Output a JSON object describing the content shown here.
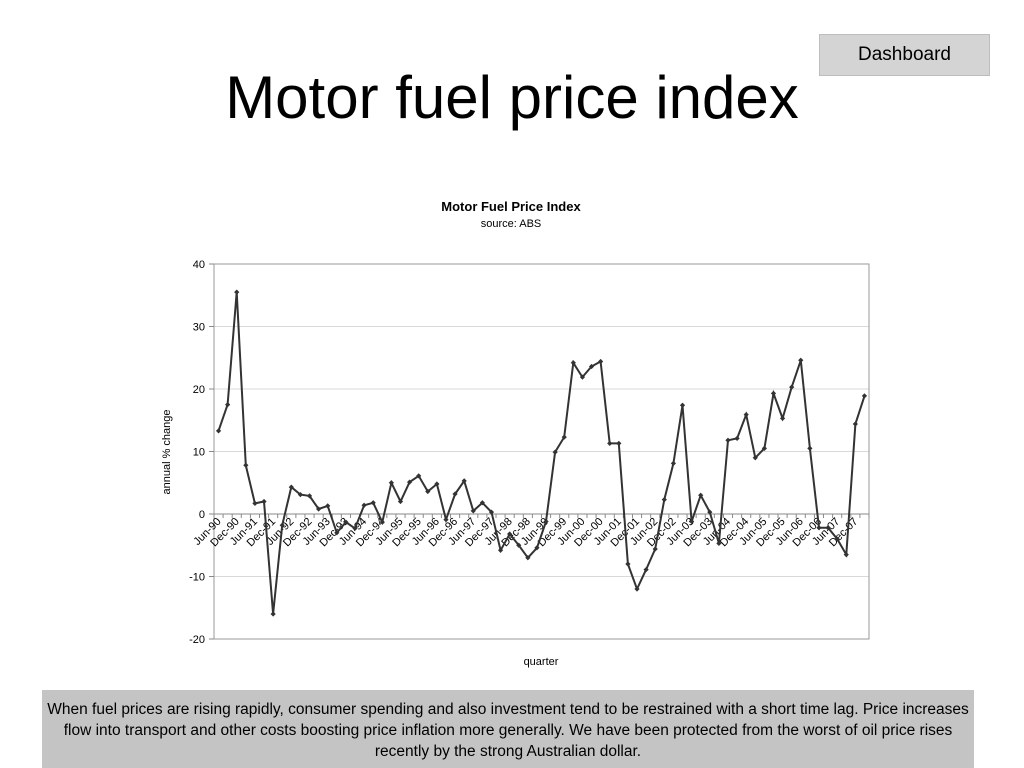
{
  "slide": {
    "title": "Motor fuel price index",
    "dashboard_label": "Dashboard",
    "caption": "When fuel prices are rising rapidly, consumer spending and also investment tend to be restrained with a short time lag.  Price increases flow into transport and other costs boosting price inflation more generally.  We have been protected from the worst of oil price rises recently by the strong Australian dollar."
  },
  "chart_data": {
    "type": "line",
    "title": "Motor Fuel Price Index",
    "subtitle": "source: ABS",
    "xlabel": "quarter",
    "ylabel": "annual % change",
    "ylim": [
      -20,
      40
    ],
    "yticks": [
      -20,
      -10,
      0,
      10,
      20,
      30,
      40
    ],
    "grid": true,
    "legend": "none",
    "line_color": "#333333",
    "x_tick_labels": [
      "Jun-90",
      "Dec-90",
      "Jun-91",
      "Dec-91",
      "Jun-92",
      "Dec-92",
      "Jun-93",
      "Dec-93",
      "Jun-94",
      "Dec-94",
      "Jun-95",
      "Dec-95",
      "Jun-96",
      "Dec-96",
      "Jun-97",
      "Dec-97",
      "Jun-98",
      "Dec-98",
      "Jun-99",
      "Dec-99",
      "Jun-00",
      "Dec-00",
      "Jun-01",
      "Dec-01",
      "Jun-02",
      "Dec-02",
      "Jun-03",
      "Dec-03",
      "Jun-04",
      "Dec-04",
      "Jun-05",
      "Dec-05",
      "Jun-06",
      "Dec-06",
      "Jun-07",
      "Dec-07"
    ],
    "x": [
      "Jun-90",
      "Sep-90",
      "Dec-90",
      "Mar-91",
      "Jun-91",
      "Sep-91",
      "Dec-91",
      "Mar-92",
      "Jun-92",
      "Sep-92",
      "Dec-92",
      "Mar-93",
      "Jun-93",
      "Sep-93",
      "Dec-93",
      "Mar-94",
      "Jun-94",
      "Sep-94",
      "Dec-94",
      "Mar-95",
      "Jun-95",
      "Sep-95",
      "Dec-95",
      "Mar-96",
      "Jun-96",
      "Sep-96",
      "Dec-96",
      "Mar-97",
      "Jun-97",
      "Sep-97",
      "Dec-97",
      "Mar-98",
      "Jun-98",
      "Sep-98",
      "Dec-98",
      "Mar-99",
      "Jun-99",
      "Sep-99",
      "Dec-99",
      "Mar-00",
      "Jun-00",
      "Sep-00",
      "Dec-00",
      "Mar-01",
      "Jun-01",
      "Sep-01",
      "Dec-01",
      "Mar-02",
      "Jun-02",
      "Sep-02",
      "Dec-02",
      "Mar-03",
      "Jun-03",
      "Sep-03",
      "Dec-03",
      "Mar-04",
      "Jun-04",
      "Sep-04",
      "Dec-04",
      "Mar-05",
      "Jun-05",
      "Sep-05",
      "Dec-05",
      "Mar-06",
      "Jun-06",
      "Sep-06",
      "Dec-06",
      "Mar-07",
      "Jun-07",
      "Sep-07",
      "Dec-07",
      "Mar-08"
    ],
    "values": [
      13.3,
      17.5,
      35.5,
      7.8,
      1.7,
      2.0,
      -16.0,
      -1.8,
      4.3,
      3.1,
      2.9,
      0.8,
      1.3,
      -3.0,
      -1.3,
      -2.3,
      1.4,
      1.8,
      -1.3,
      5.0,
      2.0,
      5.1,
      6.1,
      3.6,
      4.8,
      -0.9,
      3.2,
      5.3,
      0.5,
      1.8,
      0.3,
      -5.8,
      -3.2,
      -5.0,
      -7.0,
      -5.4,
      -1.2,
      9.9,
      12.3,
      24.2,
      21.9,
      23.6,
      24.4,
      11.3,
      11.3,
      -8.0,
      -12.0,
      -8.9,
      -5.6,
      2.3,
      8.1,
      17.4,
      -1.2,
      3.0,
      0.3,
      -4.7,
      11.8,
      12.1,
      15.9,
      9.0,
      10.5,
      19.3,
      15.3,
      20.3,
      24.6,
      10.5,
      -2.2,
      -2.2,
      -4.0,
      -6.5,
      14.4,
      18.9
    ]
  }
}
